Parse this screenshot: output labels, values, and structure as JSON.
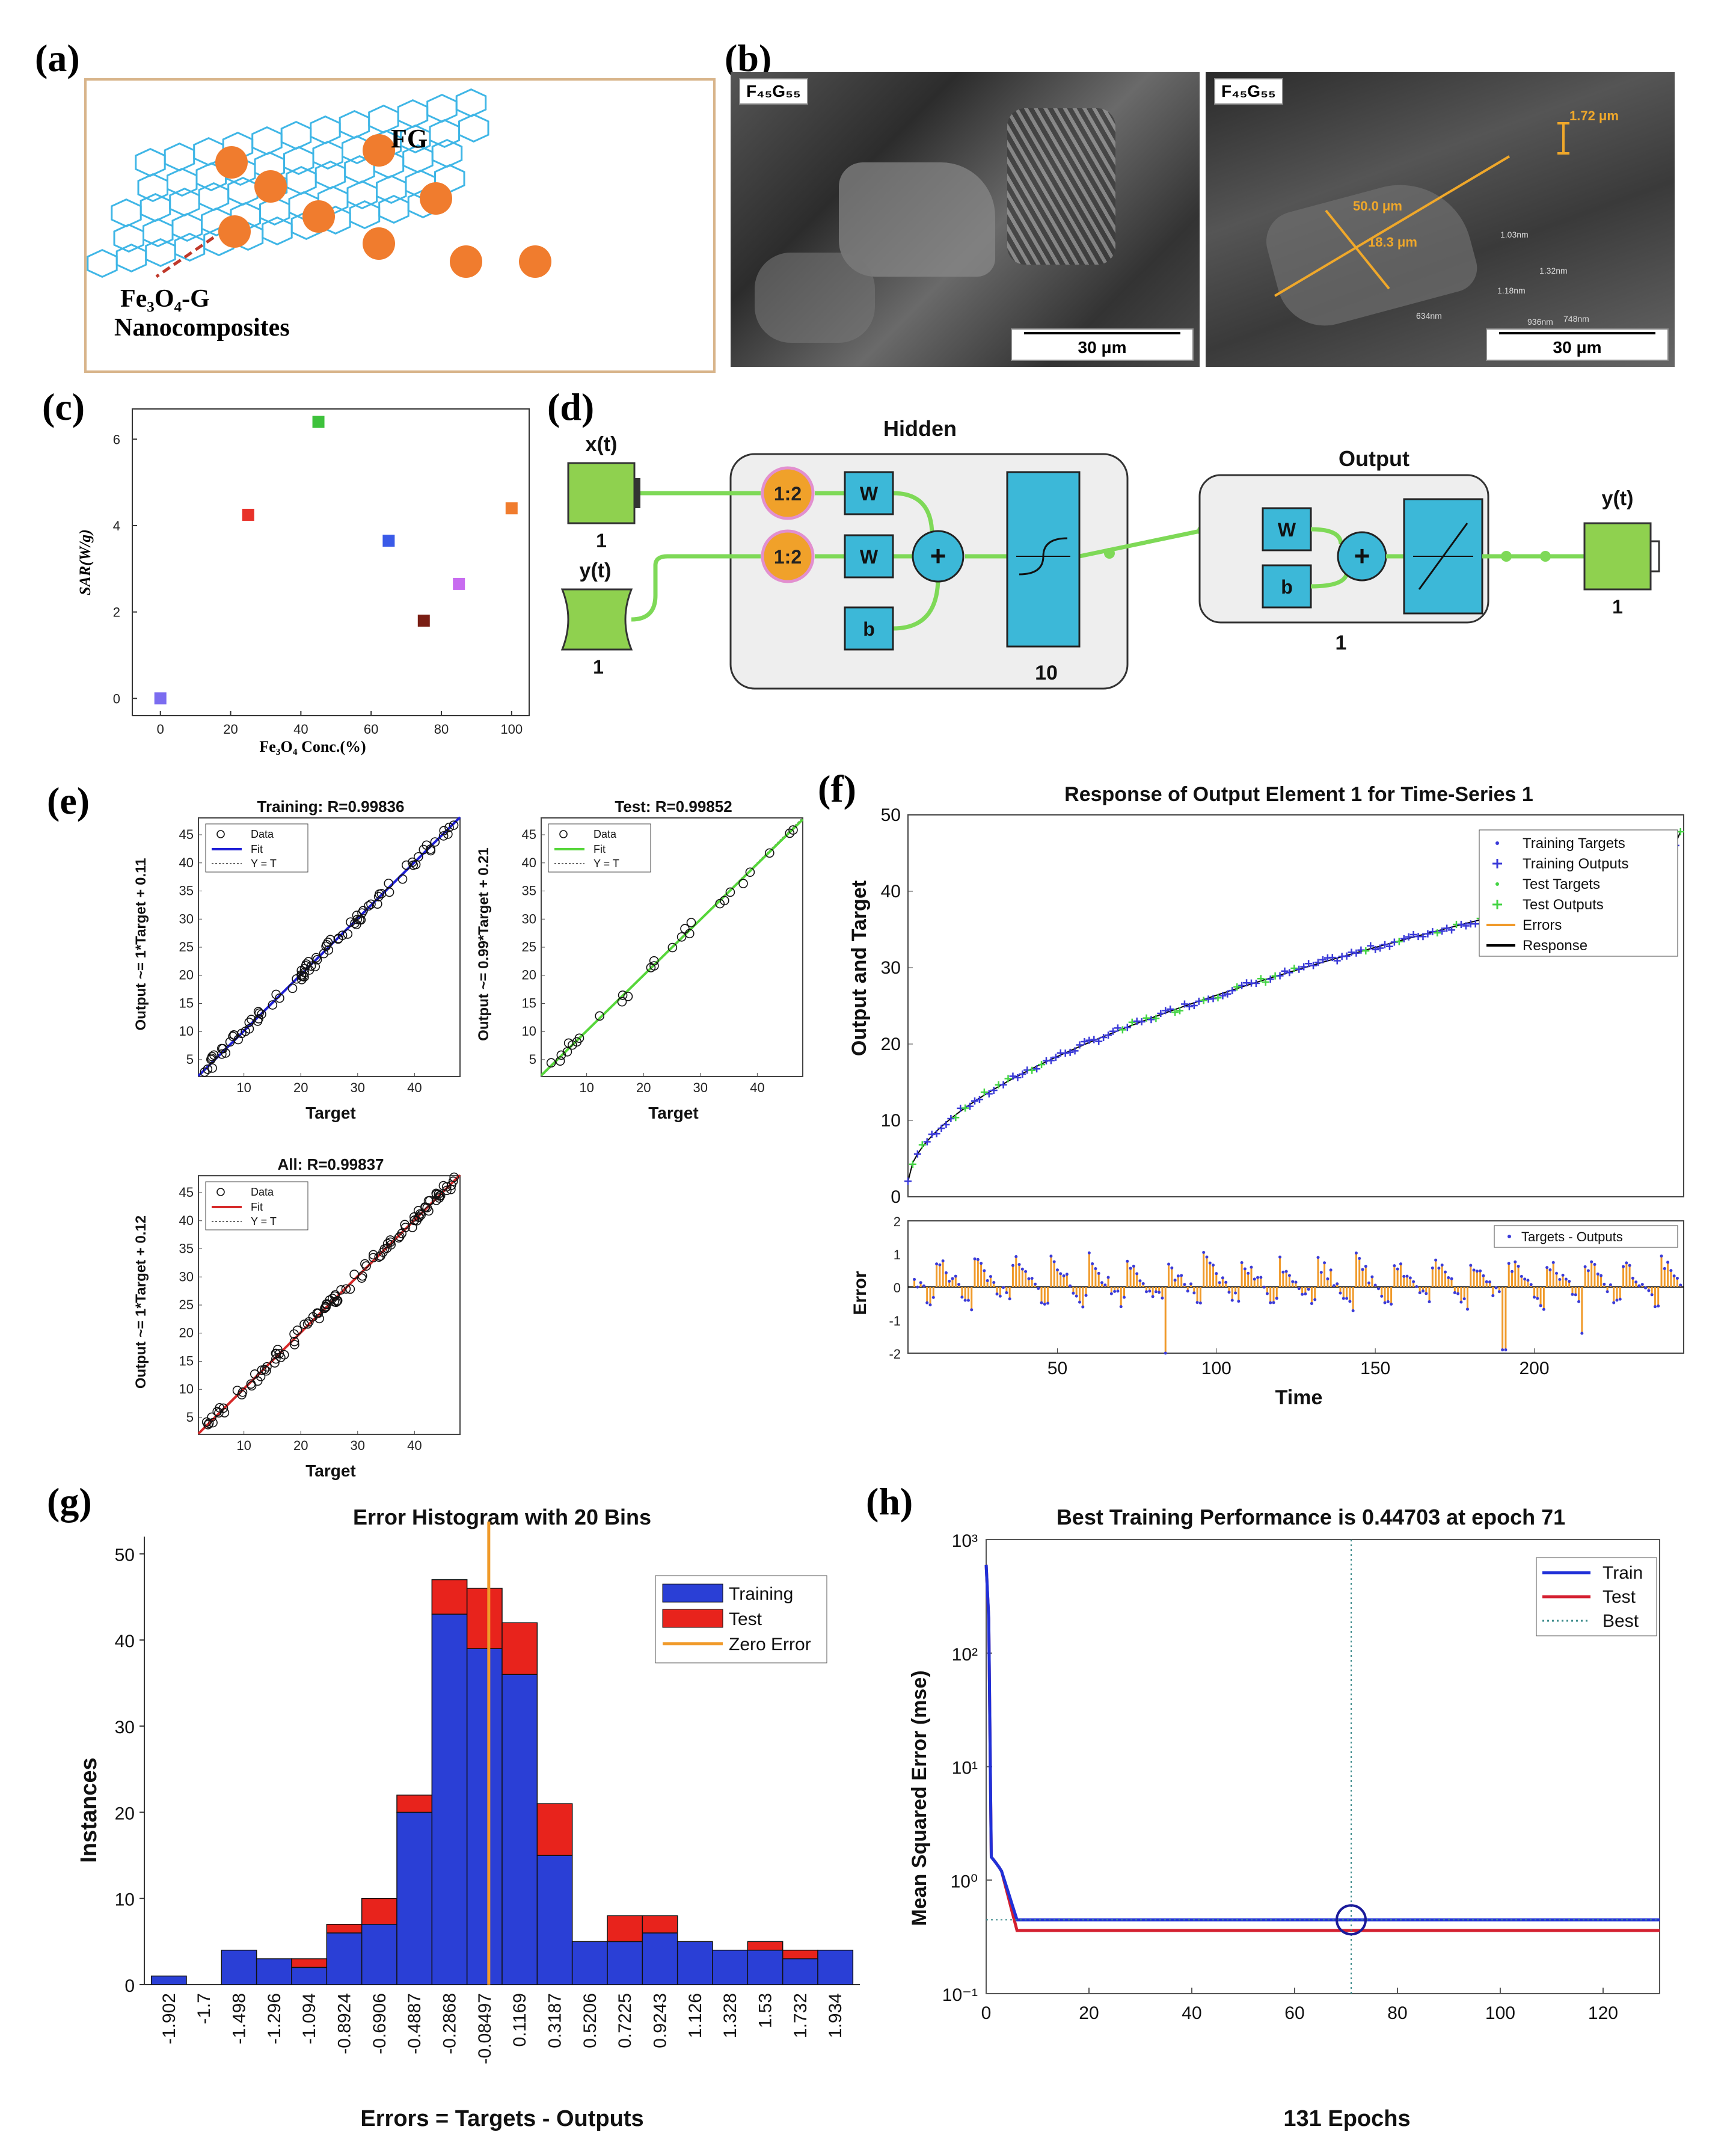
{
  "labels": {
    "a": "(a)",
    "b": "(b)",
    "c": "(c)",
    "d": "(d)",
    "e": "(e)",
    "f": "(f)",
    "g": "(g)",
    "h": "(h)"
  },
  "panel_a": {
    "fg_label": "FG",
    "composite_label_1": "Fe₃O₄-G",
    "composite_label_2": "Nanocomposites",
    "colors": {
      "sheet": "#3fb6e6",
      "particle": "#f07c2e",
      "frame": "#d8b48a"
    }
  },
  "panel_b": {
    "images": [
      {
        "label": "F₄₅G₅₅",
        "scale": "30 μm"
      },
      {
        "label": "F₄₅G₅₅",
        "scale": "30 μm"
      }
    ],
    "measurements": [
      "1.72 μm",
      "50.0 μm",
      "18.3 μm",
      "1.03nm",
      "1.32nm",
      "1.18nm",
      "936nm",
      "748nm",
      "634nm"
    ]
  },
  "panel_d": {
    "hidden_title": "Hidden",
    "output_title": "Output",
    "x_input": "x(t)",
    "y_input": "y(t)",
    "input_size": "1",
    "input_size_2": "1",
    "delay": "1:2",
    "delay_2": "1:2",
    "w": "W",
    "w_2": "W",
    "w_3": "W",
    "b": "b",
    "b_2": "b",
    "plus": "+",
    "plus_2": "+",
    "hidden_size": "10",
    "output_size": "1",
    "y_output": "y(t)",
    "y_output_size": "1",
    "colors": {
      "green": "#8fd14f",
      "box": "#3cb8d8",
      "delay": "#f0a12a",
      "line": "#7ed957"
    }
  },
  "chart_data": [
    {
      "id": "c",
      "type": "scatter",
      "xlabel": "Fe₃O₄ Conc.(%)",
      "ylabel": "SAR(W/g)",
      "xlim": [
        -8,
        105
      ],
      "ylim": [
        -0.4,
        6.7
      ],
      "xticks": [
        "0",
        "20",
        "40",
        "60",
        "80",
        "100"
      ],
      "yticks": [
        "0",
        "2",
        "4",
        "6"
      ],
      "points": [
        {
          "x": 0,
          "y": 0,
          "color": "#7b6cf0"
        },
        {
          "x": 25,
          "y": 4.25,
          "color": "#e8322a"
        },
        {
          "x": 45,
          "y": 6.4,
          "color": "#3ec23c"
        },
        {
          "x": 65,
          "y": 3.65,
          "color": "#3a5ae8"
        },
        {
          "x": 75,
          "y": 1.8,
          "color": "#7a1e14"
        },
        {
          "x": 85,
          "y": 2.65,
          "color": "#c86cf0"
        },
        {
          "x": 100,
          "y": 4.4,
          "color": "#f07c2e"
        }
      ]
    },
    {
      "id": "e1",
      "type": "scatter",
      "title": "Training: R=0.99836",
      "xlabel": "Target",
      "ylabel": "Output ~= 1*Target + 0.11",
      "xticks": [
        "10",
        "20",
        "30",
        "40"
      ],
      "yticks": [
        "5",
        "10",
        "15",
        "20",
        "25",
        "30",
        "35",
        "40",
        "45"
      ],
      "legend": [
        "Data",
        "Fit",
        "Y = T"
      ],
      "fit_color": "#1f1fd6",
      "slope": 1,
      "intercept": 0.11
    },
    {
      "id": "e2",
      "type": "scatter",
      "title": "Test: R=0.99852",
      "xlabel": "Target",
      "ylabel": "Output ~= 0.99*Target + 0.21",
      "xticks": [
        "10",
        "20",
        "30",
        "40"
      ],
      "yticks": [
        "5",
        "10",
        "15",
        "20",
        "25",
        "30",
        "35",
        "40",
        "45"
      ],
      "legend": [
        "Data",
        "Fit",
        "Y = T"
      ],
      "fit_color": "#56d63a",
      "slope": 0.99,
      "intercept": 0.21
    },
    {
      "id": "e3",
      "type": "scatter",
      "title": "All: R=0.99837",
      "xlabel": "Target",
      "ylabel": "Output ~= 1*Target + 0.12",
      "xticks": [
        "10",
        "20",
        "30",
        "40"
      ],
      "yticks": [
        "5",
        "10",
        "15",
        "20",
        "25",
        "30",
        "35",
        "40",
        "45"
      ],
      "legend": [
        "Data",
        "Fit",
        "Y = T"
      ],
      "fit_color": "#d62828",
      "slope": 1,
      "intercept": 0.12
    },
    {
      "id": "f",
      "type": "line",
      "title": "Response of Output Element 1 for Time-Series 1",
      "xlabel": "Time",
      "ylabel": "Output and Target",
      "ylabel2": "Error",
      "xlim": [
        3,
        247
      ],
      "ylim": [
        0,
        50
      ],
      "ylim2": [
        -2,
        2
      ],
      "xticks": [
        "50",
        "100",
        "150",
        "200"
      ],
      "yticks": [
        "0",
        "10",
        "20",
        "30",
        "40",
        "50"
      ],
      "yticks2": [
        "-2",
        "-1",
        "0",
        "1",
        "2"
      ],
      "legend": [
        "Training Targets",
        "Training Outputs",
        "Test Targets",
        "Test Outputs",
        "Errors",
        "Response"
      ],
      "legend2": "Targets - Outputs"
    },
    {
      "id": "g",
      "type": "bar",
      "title": "Error Histogram with 20 Bins",
      "xlabel": "Errors = Targets - Outputs",
      "ylabel": "Instances",
      "ylim": [
        0,
        52
      ],
      "yticks": [
        "0",
        "10",
        "20",
        "30",
        "40",
        "50"
      ],
      "categories": [
        "-1.902",
        "-1.7",
        "-1.498",
        "-1.296",
        "-1.094",
        "-0.8924",
        "-0.6906",
        "-0.4887",
        "-0.2868",
        "-0.08497",
        "0.1169",
        "0.3187",
        "0.5206",
        "0.7225",
        "0.9243",
        "1.126",
        "1.328",
        "1.53",
        "1.732",
        "1.934"
      ],
      "series": [
        {
          "name": "Training",
          "color": "#2a3fd6",
          "values": [
            1,
            0,
            4,
            3,
            2,
            6,
            7,
            20,
            43,
            39,
            36,
            15,
            5,
            5,
            6,
            5,
            4,
            4,
            3,
            4
          ]
        },
        {
          "name": "Test",
          "color": "#e8231c",
          "values": [
            0,
            0,
            0,
            0,
            1,
            1,
            3,
            2,
            4,
            7,
            6,
            6,
            0,
            3,
            2,
            0,
            0,
            1,
            1,
            0
          ]
        }
      ],
      "zero_error": {
        "name": "Zero Error",
        "x": -0.04,
        "color": "#f09a2a"
      }
    },
    {
      "id": "h",
      "type": "line",
      "title": "Best Training Performance is 0.44703 at epoch 71",
      "xlabel": "131 Epochs",
      "ylabel": "Mean Squared Error  (mse)",
      "xlim": [
        0,
        131
      ],
      "yscale": "log",
      "xticks": [
        "0",
        "20",
        "40",
        "60",
        "80",
        "100",
        "120"
      ],
      "yticks": [
        "10⁻¹",
        "10⁰",
        "10¹",
        "10²",
        "10³"
      ],
      "series": [
        {
          "name": "Train",
          "color": "#2030d8",
          "final": 0.447
        },
        {
          "name": "Test",
          "color": "#d42030",
          "final": 0.36
        }
      ],
      "best": {
        "name": "Best",
        "epoch": 71,
        "value": 0.44703
      }
    }
  ]
}
